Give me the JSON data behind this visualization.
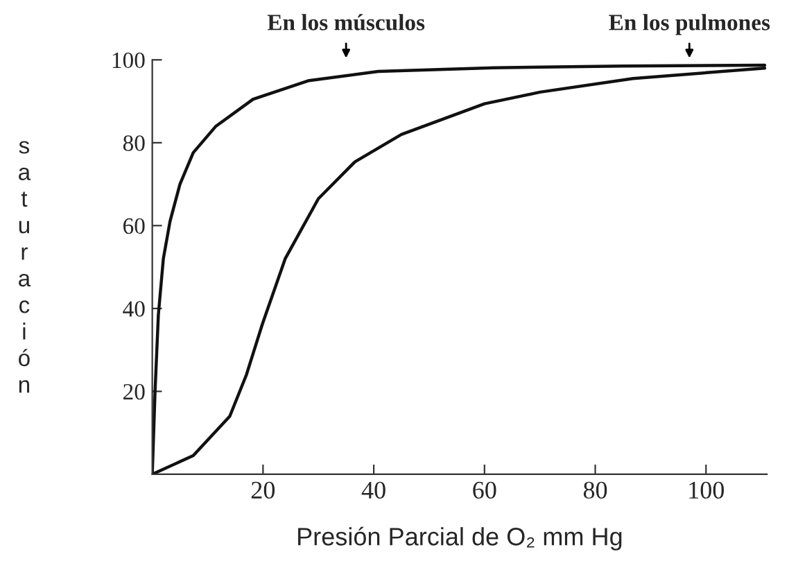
{
  "chart_data": {
    "type": "line",
    "xlabel": "Presión Parcial de O₂ mm Hg",
    "ylabel": "saturación",
    "xlim": [
      0,
      111
    ],
    "ylim": [
      0,
      100
    ],
    "xticks": [
      20,
      40,
      60,
      80,
      100
    ],
    "yticks": [
      20,
      40,
      60,
      80,
      100
    ],
    "grid": false,
    "legend": false,
    "marker": "none",
    "line_style": "solid",
    "series": [
      {
        "color": "#111111",
        "x": [
          0,
          0.5,
          1.1,
          2,
          3.2,
          5,
          7.4,
          11.5,
          18.2,
          28.3,
          40.8,
          61.7,
          85,
          110.6
        ],
        "values": [
          0,
          20,
          38.5,
          52,
          61,
          70,
          77.6,
          84,
          90.5,
          95,
          97.2,
          98.1,
          98.5,
          98.7
        ]
      },
      {
        "color": "#111111",
        "x": [
          0,
          7.4,
          14,
          17,
          19.9,
          24,
          30,
          36.6,
          45,
          60,
          70,
          86.8,
          110.6
        ],
        "values": [
          0,
          4.5,
          14,
          24,
          36.3,
          52,
          66.5,
          75.4,
          82,
          89.4,
          92.2,
          95.5,
          98
        ]
      }
    ],
    "annotations": [
      {
        "text": "En los músculos",
        "x": 35,
        "y": 98
      },
      {
        "text": "En los pulmones",
        "x": 97,
        "y": 98
      }
    ]
  }
}
